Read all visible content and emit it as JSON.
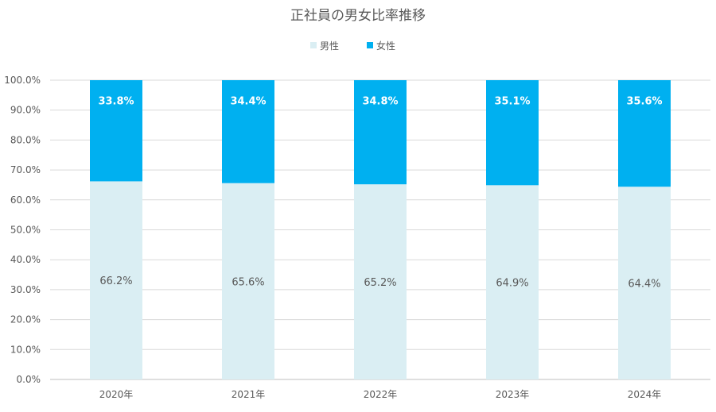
{
  "chart_data": {
    "type": "bar",
    "stacked": true,
    "title": "正社員の男女比率推移",
    "categories": [
      "2020年",
      "2021年",
      "2022年",
      "2023年",
      "2024年"
    ],
    "series": [
      {
        "name": "男性",
        "color": "#daeef3",
        "values": [
          66.2,
          65.6,
          65.2,
          64.9,
          64.4
        ],
        "labels": [
          "66.2%",
          "65.6%",
          "65.2%",
          "64.9%",
          "64.4%"
        ]
      },
      {
        "name": "女性",
        "color": "#00b0f0",
        "values": [
          33.8,
          34.4,
          34.8,
          35.1,
          35.6
        ],
        "labels": [
          "33.8%",
          "34.4%",
          "34.8%",
          "35.1%",
          "35.6%"
        ]
      }
    ],
    "ylim": [
      0,
      100
    ],
    "yticks": [
      0,
      10,
      20,
      30,
      40,
      50,
      60,
      70,
      80,
      90,
      100
    ],
    "ytick_labels": [
      "0.0%",
      "10.0%",
      "20.0%",
      "30.0%",
      "40.0%",
      "50.0%",
      "60.0%",
      "70.0%",
      "80.0%",
      "90.0%",
      "100.0%"
    ],
    "grid": true,
    "legend_position": "top"
  }
}
